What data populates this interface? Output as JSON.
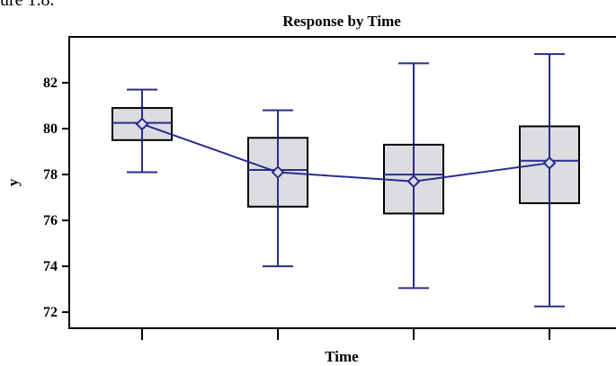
{
  "page": {
    "partial_caption": "ure 1.8."
  },
  "chart_data": {
    "type": "box",
    "title": "Response by Time",
    "xlabel": "Time",
    "ylabel": "y",
    "ylim": [
      71.3,
      84.0
    ],
    "yticks": [
      72,
      74,
      76,
      78,
      80,
      82
    ],
    "categories": [
      "",
      "",
      "",
      ""
    ],
    "boxes": [
      {
        "whisker_low": 78.1,
        "q1": 79.5,
        "median": 80.25,
        "q3": 80.9,
        "whisker_high": 81.7,
        "mean": 80.2
      },
      {
        "whisker_low": 74.0,
        "q1": 76.6,
        "median": 78.2,
        "q3": 79.6,
        "whisker_high": 80.8,
        "mean": 78.1
      },
      {
        "whisker_low": 73.05,
        "q1": 76.3,
        "median": 78.0,
        "q3": 79.3,
        "whisker_high": 82.85,
        "mean": 77.7
      },
      {
        "whisker_low": 72.25,
        "q1": 76.75,
        "median": 78.6,
        "q3": 80.1,
        "whisker_high": 83.25,
        "mean": 78.5
      }
    ],
    "grid": false,
    "colors": {
      "box_fill": "#dcdde1",
      "box_edge": "#000000",
      "median_line": "#2b2b8f",
      "whisker": "#2b2b8f",
      "mean_line": "#2b2b8f"
    }
  }
}
